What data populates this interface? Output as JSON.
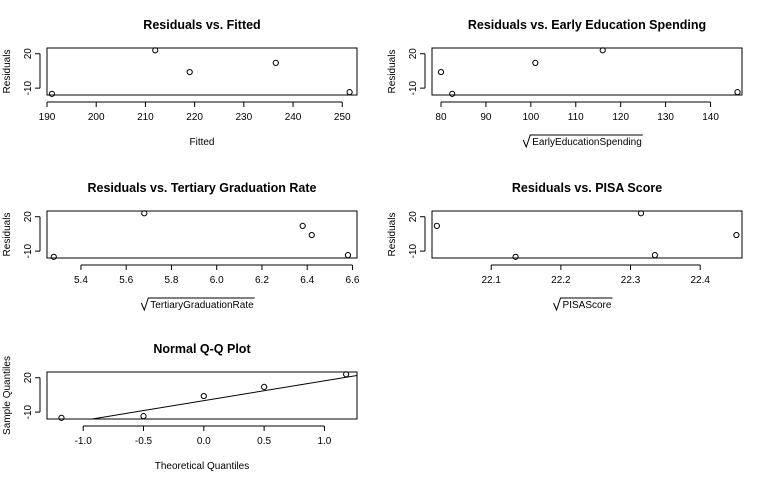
{
  "chart_data": [
    {
      "type": "scatter",
      "title": "Residuals vs. Fitted",
      "xlabel": "Fitted",
      "xlabel_sqrt": false,
      "ylabel": "Residuals",
      "xlim": [
        190,
        253
      ],
      "ylim": [
        -16,
        25
      ],
      "xticks": [
        190,
        200,
        210,
        220,
        230,
        240,
        250
      ],
      "yticks": [
        -10,
        20
      ],
      "points": [
        {
          "x": 191,
          "y": -15
        },
        {
          "x": 212,
          "y": 23
        },
        {
          "x": 219,
          "y": 4
        },
        {
          "x": 236.5,
          "y": 12
        },
        {
          "x": 251.5,
          "y": -13.5
        }
      ]
    },
    {
      "type": "scatter",
      "title": "Residuals vs. Early Education Spending",
      "xlabel": "EarlyEducationSpending",
      "xlabel_sqrt": true,
      "ylabel": "Residuals",
      "xlim": [
        78,
        147
      ],
      "ylim": [
        -16,
        25
      ],
      "xticks": [
        80,
        90,
        100,
        110,
        120,
        130,
        140
      ],
      "yticks": [
        -10,
        20
      ],
      "points": [
        {
          "x": 80,
          "y": 4
        },
        {
          "x": 82.5,
          "y": -15
        },
        {
          "x": 101,
          "y": 12
        },
        {
          "x": 116,
          "y": 23
        },
        {
          "x": 146,
          "y": -13.5
        }
      ]
    },
    {
      "type": "scatter",
      "title": "Residuals vs. Tertiary Graduation Rate",
      "xlabel": "TertiaryGraduationRate",
      "xlabel_sqrt": true,
      "ylabel": "Residuals",
      "xlim": [
        5.25,
        6.62
      ],
      "ylim": [
        -16,
        25
      ],
      "xticks": [
        5.4,
        5.6,
        5.8,
        6.0,
        6.2,
        6.4,
        6.6
      ],
      "xtick_labels": [
        "5.4",
        "5.6",
        "5.8",
        "6.0",
        "6.2",
        "6.4",
        "6.6"
      ],
      "yticks": [
        -10,
        20
      ],
      "points": [
        {
          "x": 5.28,
          "y": -15
        },
        {
          "x": 5.68,
          "y": 23
        },
        {
          "x": 6.38,
          "y": 12
        },
        {
          "x": 6.42,
          "y": 4
        },
        {
          "x": 6.58,
          "y": -13.5
        }
      ]
    },
    {
      "type": "scatter",
      "title": "Residuals vs. PISA Score",
      "xlabel": "PISAScore",
      "xlabel_sqrt": true,
      "ylabel": "Residuals",
      "xlim": [
        22.015,
        22.46
      ],
      "ylim": [
        -16,
        25
      ],
      "xticks": [
        22.1,
        22.2,
        22.3,
        22.4
      ],
      "xtick_labels": [
        "22.1",
        "22.2",
        "22.3",
        "22.4"
      ],
      "yticks": [
        -10,
        20
      ],
      "points": [
        {
          "x": 22.022,
          "y": 12
        },
        {
          "x": 22.135,
          "y": -15
        },
        {
          "x": 22.315,
          "y": 23
        },
        {
          "x": 22.335,
          "y": -13.5
        },
        {
          "x": 22.452,
          "y": 4
        }
      ]
    },
    {
      "type": "scatter",
      "title": "Normal Q-Q Plot",
      "xlabel": "Theoretical Quantiles",
      "xlabel_sqrt": false,
      "ylabel": "Sample Quantiles",
      "xlim": [
        -1.3,
        1.27
      ],
      "ylim": [
        -16,
        25
      ],
      "xticks": [
        -1.0,
        -0.5,
        0.0,
        0.5,
        1.0
      ],
      "xtick_labels": [
        "-1.0",
        "-0.5",
        "0.0",
        "0.5",
        "1.0"
      ],
      "yticks": [
        -10,
        20
      ],
      "points": [
        {
          "x": -1.18,
          "y": -15
        },
        {
          "x": -0.5,
          "y": -13.5
        },
        {
          "x": 0.0,
          "y": 4
        },
        {
          "x": 0.5,
          "y": 12
        },
        {
          "x": 1.18,
          "y": 23
        }
      ],
      "reference_line": {
        "slope": 17.3,
        "intercept": 0
      }
    }
  ]
}
